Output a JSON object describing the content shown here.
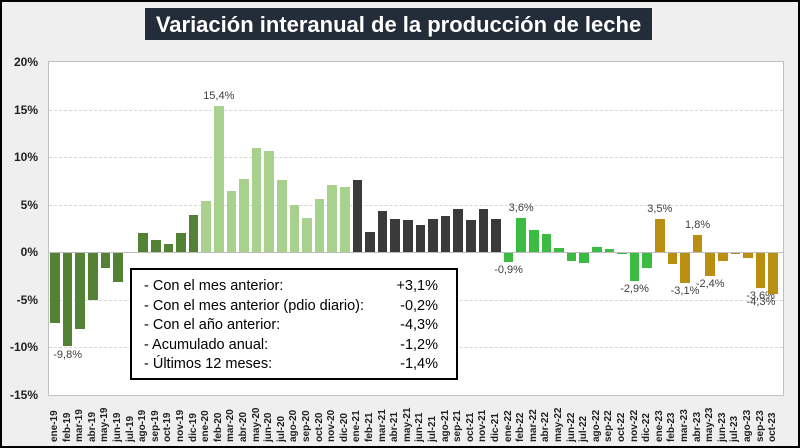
{
  "title": "Variación interanual de la producción de leche",
  "summary_box": {
    "rows": [
      {
        "label": "- Con el mes anterior:",
        "value": "+3,1%"
      },
      {
        "label": "- Con el mes anterior (pdio diario):",
        "value": "-0,2%"
      },
      {
        "label": "- Con el año anterior:",
        "value": "-4,3%"
      },
      {
        "label": "- Acumulado anual:",
        "value": "-1,2%"
      },
      {
        "label": "- Últimos 12 meses:",
        "value": "-1,4%"
      }
    ]
  },
  "chart_data": {
    "type": "bar",
    "title": "Variación interanual de la producción de leche",
    "xlabel": "",
    "ylabel": "",
    "ylim": [
      -15,
      20
    ],
    "yticks": [
      20,
      15,
      10,
      5,
      0,
      -5,
      -10,
      -15
    ],
    "ytick_labels": [
      "20%",
      "15%",
      "10%",
      "5%",
      "0%",
      "-5%",
      "-10%",
      "-15%"
    ],
    "grid": "horizontal-dashed",
    "legend": "none",
    "categories": [
      "ene-19",
      "feb-19",
      "mar-19",
      "abr-19",
      "may-19",
      "jun-19",
      "jul-19",
      "ago-19",
      "sep-19",
      "oct-19",
      "nov-19",
      "dic-19",
      "ene-20",
      "feb-20",
      "mar-20",
      "abr-20",
      "may-20",
      "jun-20",
      "jul-20",
      "ago-20",
      "sep-20",
      "oct-20",
      "nov-20",
      "dic-20",
      "ene-21",
      "feb-21",
      "mar-21",
      "abr-21",
      "may-21",
      "jun-21",
      "jul-21",
      "ago-21",
      "sep-21",
      "oct-21",
      "nov-21",
      "dic-21",
      "ene-22",
      "feb-22",
      "mar-22",
      "abr-22",
      "may-22",
      "jun-22",
      "jul-22",
      "ago-22",
      "sep-22",
      "oct-22",
      "nov-22",
      "dic-22",
      "ene-23",
      "feb-23",
      "mar-23",
      "abr-23",
      "may-23",
      "jun-23",
      "jul-23",
      "ago-23",
      "sep-23",
      "oct-23"
    ],
    "values": [
      -7.3,
      -9.8,
      -8.0,
      -4.9,
      -1.6,
      -3.0,
      0.0,
      2.0,
      1.3,
      0.9,
      2.0,
      3.9,
      5.4,
      15.4,
      6.4,
      7.7,
      11.0,
      10.6,
      7.6,
      5.0,
      3.6,
      5.6,
      7.1,
      6.9,
      7.6,
      2.1,
      4.3,
      3.5,
      3.4,
      2.9,
      3.5,
      3.8,
      4.6,
      3.4,
      4.6,
      3.5,
      -0.9,
      3.6,
      2.3,
      1.9,
      0.5,
      -0.8,
      -1.0,
      0.6,
      0.3,
      -0.1,
      -2.9,
      -1.6,
      3.5,
      -1.1,
      -3.1,
      1.8,
      -2.4,
      -0.8,
      -0.1,
      -0.5,
      -3.6,
      -4.3
    ],
    "point_labels": [
      "",
      "-9,8%",
      "",
      "",
      "",
      "",
      "",
      "",
      "",
      "",
      "",
      "",
      "",
      "15,4%",
      "",
      "",
      "",
      "",
      "",
      "",
      "",
      "",
      "",
      "",
      "",
      "",
      "",
      "",
      "",
      "",
      "",
      "",
      "",
      "",
      "",
      "",
      "-0,9%",
      "3,6%",
      "",
      "",
      "",
      "",
      "",
      "",
      "",
      "",
      "-2,9%",
      "",
      "3,5%",
      "",
      "-3,1%",
      "1,8%",
      "-2,4%",
      "",
      "",
      "",
      "-3,6%",
      "-4,3%"
    ],
    "year_colors": {
      "19": "#548235",
      "20": "#A9D18E",
      "21": "#3A3A3A",
      "22": "#3CBB42",
      "23": "#BA8E10"
    }
  },
  "colors": {
    "background": "#EFEFEF",
    "frame_border": "#000000",
    "title_background": "#232C39",
    "title_text": "#FFFFFF",
    "plot_background": "#FFFFFF",
    "plot_border": "#BFBFBF",
    "gridline": "#D6D6D6",
    "zero_line": "#BDBDBD",
    "bar_2019": "#548235",
    "bar_2020": "#A9D18E",
    "bar_2021": "#3A3A3A",
    "bar_2022": "#3CBB42",
    "bar_2023": "#BA8E10"
  }
}
